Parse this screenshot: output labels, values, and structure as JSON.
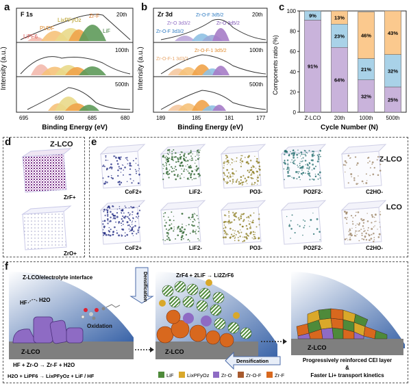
{
  "panel_a": {
    "letter": "a",
    "title": "F 1s",
    "cycles": [
      "20th",
      "100th",
      "500th"
    ],
    "peaks": [
      "LiPF6",
      "PVDF",
      "LixPFyOz",
      "Zr-F",
      "LiF"
    ],
    "xlabel": "Binding Energy (eV)",
    "ylabel": "Intensity (a.u.)",
    "xticks": [
      "695",
      "690",
      "685",
      "680"
    ]
  },
  "panel_b": {
    "letter": "b",
    "title": "Zr 3d",
    "cycles": [
      "20th",
      "100th",
      "500th"
    ],
    "peaks": [
      "Zr-O-F 3d5/2",
      "Zr-O 3d3/2",
      "Zr-O 3d5/2",
      "Zr-O-F 3d3/2",
      "Zr-O-F-1 3d5/2",
      "Zr-O-F-1 3d3/2"
    ],
    "xlabel": "Binding Energy (eV)",
    "ylabel": "Intensity (a.u.)",
    "xticks": [
      "189",
      "185",
      "181",
      "177"
    ]
  },
  "panel_c": {
    "letter": "c",
    "ylabel": "Components ratio (%)",
    "xlabel": "Cycle Number (N)",
    "yticks": [
      "0",
      "20",
      "40",
      "60",
      "80",
      "100"
    ],
    "colors": {
      "purple": "#c9b3db",
      "blue": "#a9d2e8",
      "orange": "#fbc98e"
    }
  },
  "chart_data": {
    "type": "bar",
    "categories": [
      "Z-LCO",
      "20th",
      "100th",
      "500th"
    ],
    "series": [
      {
        "values": [
          91,
          64,
          32,
          25
        ]
      },
      {
        "values": [
          9,
          23,
          21,
          32
        ]
      },
      {
        "values": [
          0,
          13,
          46,
          43
        ]
      }
    ],
    "labels": [
      [
        "91%",
        "9%",
        ""
      ],
      [
        "64%",
        "23%",
        "13%"
      ],
      [
        "32%",
        "21%",
        "46%"
      ],
      [
        "25%",
        "32%",
        "43%"
      ]
    ],
    "xlabel": "Cycle Number (N)",
    "ylabel": "Components ratio (%)",
    "ylim": [
      0,
      100
    ]
  },
  "panel_d": {
    "letter": "d",
    "sample": "Z-LCO",
    "ions": [
      "ZrF+",
      "ZrO+"
    ]
  },
  "panel_e": {
    "letter": "e",
    "samples": [
      "Z-LCO",
      "LCO"
    ],
    "ions": [
      "CoF2+",
      "LiF2-",
      "PO3-",
      "PO2F2-",
      "C2HO-"
    ],
    "colors": [
      "#1a237e",
      "#1f5a1f",
      "#8a7a1a",
      "#1f6b6b",
      "#9a8060"
    ]
  },
  "panel_f": {
    "letter": "f",
    "interface_title": "Z-LCO/electrolyte interface",
    "hf": "HF",
    "h2o": "H2O",
    "oxidation": "Oxidation",
    "zlco": "Z-LCO",
    "reaction_top": "ZrF4 + 2LiF → Li2ZrF6",
    "densification": "Densification",
    "eq1": "HF + Zr-O → Zr-F + H2O",
    "eq2": "H2O + LiPF6 → LixPFyOz + LiF / HF",
    "legend": [
      "LiF",
      "LixPFyOz",
      "Zr-O",
      "Zr-O-F",
      "Zr-F"
    ],
    "legend_colors": [
      "#4e8a3a",
      "#d9a82a",
      "#8e6bc4",
      "#a75a2e",
      "#d8681e"
    ],
    "conclusion1": "Progressively reinforced CEI layer",
    "conclusion_amp": "&",
    "conclusion2": "Faster Li+ transport kinetics"
  }
}
